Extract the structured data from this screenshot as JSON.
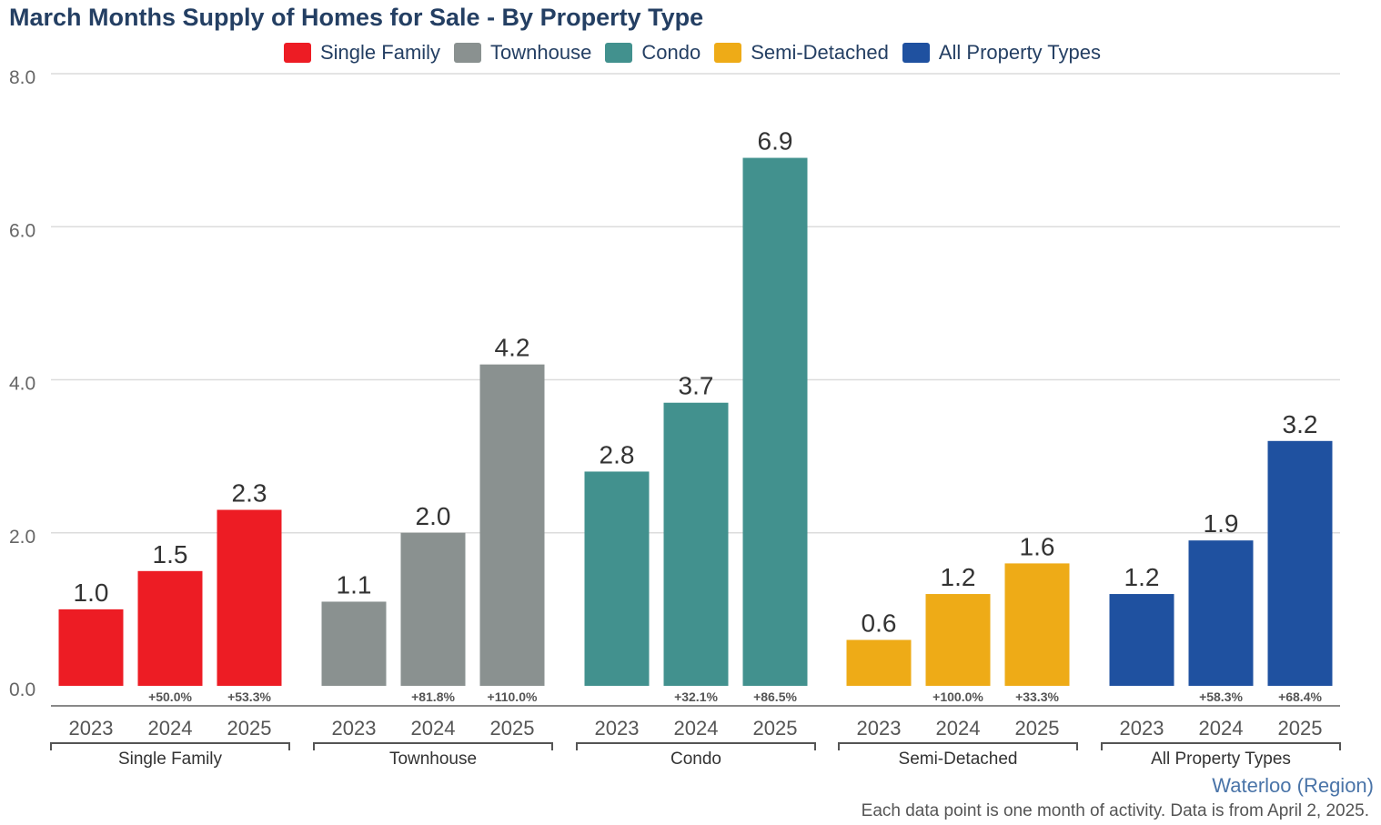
{
  "chart_data": {
    "type": "bar",
    "title": "March Months Supply of Homes for Sale - By Property Type",
    "ylim": [
      0,
      8
    ],
    "yticks": [
      "0.0",
      "2.0",
      "4.0",
      "6.0",
      "8.0"
    ],
    "grid": true,
    "legend_position": "top",
    "years": [
      "2023",
      "2024",
      "2025"
    ],
    "series": [
      {
        "name": "Single Family",
        "color": "#ed1c24",
        "values": [
          1.0,
          1.5,
          2.3
        ],
        "labels": [
          "1.0",
          "1.5",
          "2.3"
        ],
        "changes": [
          "",
          "+50.0%",
          "+53.3%"
        ]
      },
      {
        "name": "Townhouse",
        "color": "#8a9190",
        "values": [
          1.1,
          2.0,
          4.2
        ],
        "labels": [
          "1.1",
          "2.0",
          "4.2"
        ],
        "changes": [
          "",
          "+81.8%",
          "+110.0%"
        ]
      },
      {
        "name": "Condo",
        "color": "#42918e",
        "values": [
          2.8,
          3.7,
          6.9
        ],
        "labels": [
          "2.8",
          "3.7",
          "6.9"
        ],
        "changes": [
          "",
          "+32.1%",
          "+86.5%"
        ]
      },
      {
        "name": "Semi-Detached",
        "color": "#eeab17",
        "values": [
          0.6,
          1.2,
          1.6
        ],
        "labels": [
          "0.6",
          "1.2",
          "1.6"
        ],
        "changes": [
          "",
          "+100.0%",
          "+33.3%"
        ]
      },
      {
        "name": "All Property Types",
        "color": "#1f51a0",
        "values": [
          1.2,
          1.9,
          3.2
        ],
        "labels": [
          "1.2",
          "1.9",
          "3.2"
        ],
        "changes": [
          "",
          "+58.3%",
          "+68.4%"
        ]
      }
    ]
  },
  "footer": {
    "region": "Waterloo (Region)",
    "note": "Each data point is one month of activity. Data is from April 2, 2025."
  }
}
